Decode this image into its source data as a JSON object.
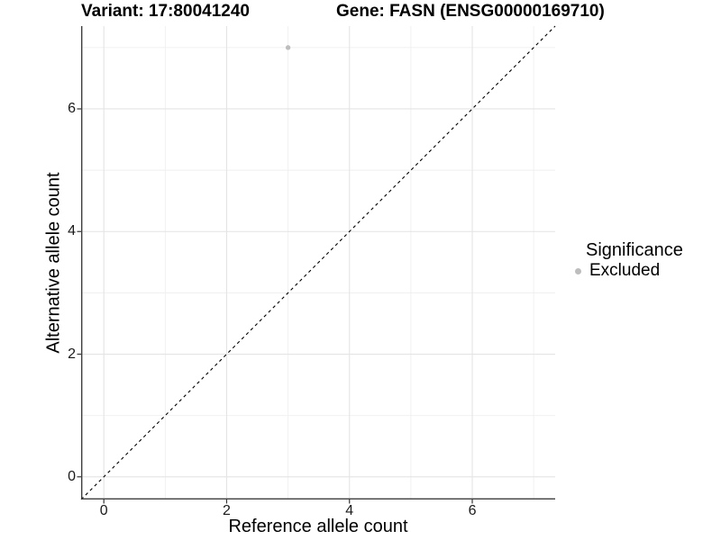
{
  "colors": {
    "background": "#ffffff",
    "major_grid": "#e4e4e4",
    "minor_grid": "#efefef",
    "axis_line": "#3f3f3f",
    "tick_mark": "#333333",
    "tick_label": "#1a1a1a",
    "reference_line": "#000000",
    "excluded_point": "#bdbdbd"
  },
  "chart_data": {
    "type": "scatter",
    "title_left": "Variant: 17:80041240",
    "title_right": "Gene: FASN (ENSG00000169710)",
    "xlabel": "Reference allele count",
    "ylabel": "Alternative allele count",
    "xlim": [
      -0.37,
      7.35
    ],
    "ylim": [
      -0.37,
      7.35
    ],
    "x_ticks": [
      0,
      2,
      4,
      6
    ],
    "y_ticks": [
      0,
      2,
      4,
      6
    ],
    "x_minor_breaks": [
      1,
      3,
      5,
      7
    ],
    "y_minor_breaks": [
      1,
      3,
      5,
      7
    ],
    "grid": true,
    "aspect": "equal",
    "legend_position": "right",
    "series": [
      {
        "name": "Excluded",
        "color": "#bdbdbd",
        "points": [
          {
            "x": 3,
            "y": 7
          }
        ]
      }
    ],
    "reference_line": {
      "slope": 1,
      "intercept": 0,
      "style": "dashed",
      "color": "#000000"
    },
    "legend": {
      "title": "Significance",
      "items": [
        {
          "label": "Excluded",
          "color": "#bdbdbd"
        }
      ]
    }
  }
}
